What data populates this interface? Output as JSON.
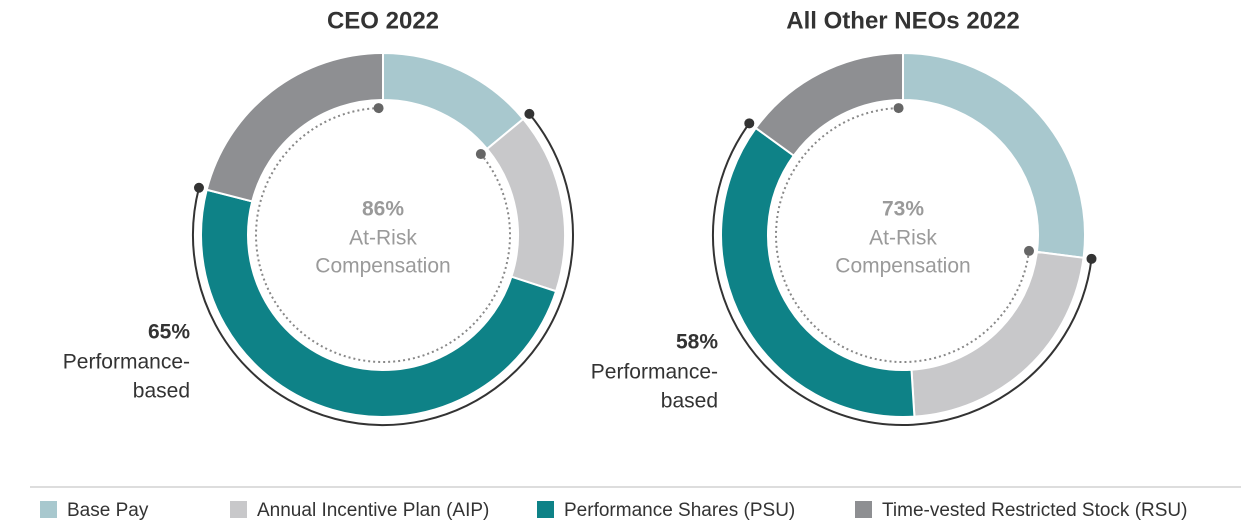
{
  "chart_data": [
    {
      "type": "donut",
      "title": "CEO 2022",
      "values": [
        14,
        16,
        49,
        21
      ],
      "at_risk": {
        "value": 86,
        "label": "86%"
      },
      "at_risk_text": [
        "At-Risk",
        "Compensation"
      ],
      "performance_based": {
        "value": 65,
        "label": "65%"
      },
      "performance_text": [
        "Performance-",
        "based"
      ]
    },
    {
      "type": "donut",
      "title": "All Other NEOs 2022",
      "values": [
        27,
        22,
        36,
        15
      ],
      "at_risk": {
        "value": 73,
        "label": "73%"
      },
      "at_risk_text": [
        "At-Risk",
        "Compensation"
      ],
      "performance_based": {
        "value": 58,
        "label": "58%"
      },
      "performance_text": [
        "Performance-",
        "based"
      ]
    }
  ],
  "legend": {
    "labels": [
      "Base Pay",
      "Annual Incentive Plan (AIP)",
      "Performance Shares (PSU)",
      "Time-vested Restricted Stock (RSU)"
    ],
    "colors": [
      "#a8c8ce",
      "#c8c8ca",
      "#0e8287",
      "#8e8f92"
    ]
  }
}
